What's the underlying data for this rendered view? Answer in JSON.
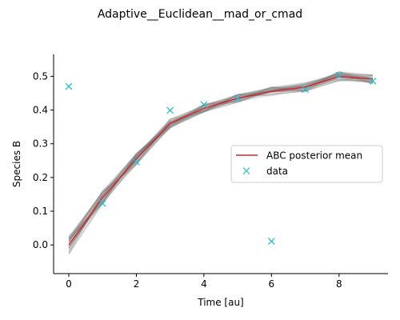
{
  "chart_data": {
    "type": "line",
    "title": "Adaptive__Euclidean__mad_or_cmad",
    "xlabel": "Time [au]",
    "ylabel": "Species B",
    "xlim": [
      -0.45,
      9.45
    ],
    "ylim": [
      -0.085,
      0.565
    ],
    "x_ticks": [
      0,
      2,
      4,
      6,
      8
    ],
    "y_ticks": [
      0.0,
      0.1,
      0.2,
      0.3,
      0.4,
      0.5
    ],
    "x_tick_labels": [
      "0",
      "2",
      "4",
      "6",
      "8"
    ],
    "y_tick_labels": [
      "0.0",
      "0.1",
      "0.2",
      "0.3",
      "0.4",
      "0.5"
    ],
    "legend_position": "center-right",
    "grid": false,
    "series": [
      {
        "name": "ABC posterior mean",
        "type": "line",
        "color": "#d62728",
        "x": [
          0,
          1,
          2,
          3,
          4,
          5,
          6,
          7,
          8,
          9
        ],
        "y": [
          0.0,
          0.14,
          0.255,
          0.36,
          0.405,
          0.435,
          0.455,
          0.468,
          0.5,
          0.492
        ]
      },
      {
        "name": "data",
        "type": "scatter",
        "marker": "x",
        "color": "#17becf",
        "x": [
          0,
          1,
          2,
          3,
          4,
          5,
          6,
          7,
          8,
          9
        ],
        "y": [
          0.47,
          0.123,
          0.246,
          0.399,
          0.416,
          0.434,
          0.011,
          0.461,
          0.503,
          0.486
        ]
      }
    ],
    "posterior_band_color": "#606060"
  }
}
